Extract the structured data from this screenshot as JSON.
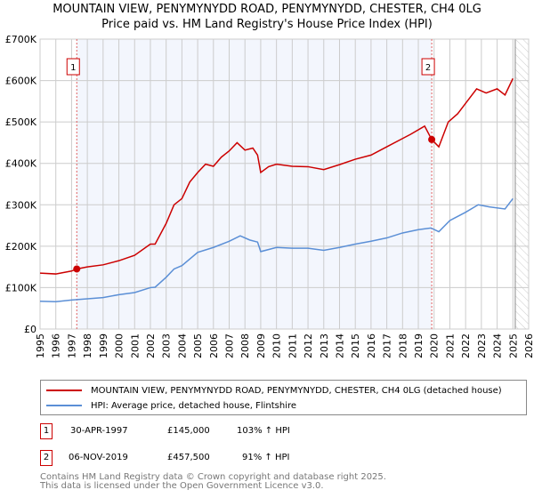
{
  "chart_data": {
    "type": "line",
    "title": "MOUNTAIN VIEW, PENYMYNYDD ROAD, PENYMYNYDD, CHESTER, CH4 0LG",
    "subtitle": "Price paid vs. HM Land Registry's House Price Index (HPI)",
    "xlim": [
      1995,
      2026
    ],
    "ylim": [
      0,
      700000
    ],
    "x_ticks": [
      "1995",
      "1996",
      "1997",
      "1998",
      "1999",
      "2000",
      "2001",
      "2002",
      "2003",
      "2004",
      "2005",
      "2006",
      "2007",
      "2008",
      "2009",
      "2010",
      "2011",
      "2012",
      "2013",
      "2014",
      "2015",
      "2016",
      "2017",
      "2018",
      "2019",
      "2020",
      "2021",
      "2022",
      "2023",
      "2024",
      "2025",
      "2026"
    ],
    "y_ticks": [
      {
        "v": 0,
        "label": "£0"
      },
      {
        "v": 100000,
        "label": "£100K"
      },
      {
        "v": 200000,
        "label": "£200K"
      },
      {
        "v": 300000,
        "label": "£300K"
      },
      {
        "v": 400000,
        "label": "£400K"
      },
      {
        "v": 500000,
        "label": "£500K"
      },
      {
        "v": 600000,
        "label": "£600K"
      },
      {
        "v": 700000,
        "label": "£700K"
      }
    ],
    "grid": true,
    "series": [
      {
        "name": "MOUNTAIN VIEW, PENYMYNYDD ROAD, PENYMYNYDD, CHESTER, CH4 0LG (detached house)",
        "color": "#cc0000",
        "x": [
          1995,
          1996,
          1997,
          1997.33,
          1998,
          1999,
          2000,
          2001,
          2002,
          2002.3,
          2003,
          2003.5,
          2004,
          2004.5,
          2005,
          2005.5,
          2006,
          2006.5,
          2007,
          2007.5,
          2008,
          2008.5,
          2008.8,
          2009,
          2009.5,
          2010,
          2011,
          2012,
          2013,
          2014,
          2015,
          2016,
          2017,
          2018,
          2018.5,
          2019.4,
          2019.85,
          2020.3,
          2020.9,
          2021.5,
          2022,
          2022.7,
          2023.3,
          2024,
          2024.5,
          2025
        ],
        "y": [
          135000,
          133000,
          140000,
          145000,
          150000,
          155000,
          165000,
          178000,
          205000,
          205000,
          255000,
          300000,
          315000,
          355000,
          378000,
          398000,
          393000,
          415000,
          430000,
          450000,
          432000,
          437000,
          420000,
          378000,
          392000,
          398000,
          393000,
          392000,
          385000,
          397000,
          410000,
          420000,
          440000,
          460000,
          470000,
          490000,
          457500,
          440000,
          500000,
          520000,
          545000,
          580000,
          570000,
          580000,
          565000,
          605000
        ]
      },
      {
        "name": "HPI: Average price, detached house, Flintshire",
        "color": "#5b8fd6",
        "x": [
          1995,
          1996,
          1997,
          1998,
          1999,
          2000,
          2001,
          2002,
          2002.3,
          2003,
          2003.5,
          2004,
          2005,
          2006,
          2007,
          2007.7,
          2008.3,
          2008.8,
          2009,
          2010,
          2011,
          2012,
          2013,
          2014,
          2015,
          2016,
          2017,
          2018,
          2019,
          2019.8,
          2020.3,
          2021,
          2022,
          2022.8,
          2023.5,
          2024.5,
          2025
        ],
        "y": [
          67000,
          66000,
          70000,
          73000,
          76000,
          83000,
          88000,
          100000,
          101000,
          125000,
          145000,
          153000,
          185000,
          197000,
          212000,
          225000,
          215000,
          210000,
          187000,
          197000,
          195000,
          195000,
          190000,
          197000,
          205000,
          212000,
          220000,
          232000,
          240000,
          244000,
          235000,
          262000,
          282000,
          300000,
          295000,
          290000,
          315000
        ]
      }
    ],
    "sales": [
      {
        "label": "1",
        "x": 1997.33,
        "y": 145000
      },
      {
        "label": "2",
        "x": 2019.85,
        "y": 457500
      }
    ],
    "forecast_from": 2025.15
  },
  "legend": {
    "red": "MOUNTAIN VIEW, PENYMYNYDD ROAD, PENYMYNYDD, CHESTER, CH4 0LG (detached house)",
    "blue": "HPI: Average price, detached house, Flintshire"
  },
  "transactions": [
    {
      "num": "1",
      "date": "30-APR-1997",
      "price": "£145,000",
      "hpi": "103% ↑ HPI"
    },
    {
      "num": "2",
      "date": "06-NOV-2019",
      "price": "£457,500",
      "hpi": "91% ↑ HPI"
    }
  ],
  "footer": [
    "Contains HM Land Registry data © Crown copyright and database right 2025.",
    "This data is licensed under the Open Government Licence v3.0."
  ]
}
